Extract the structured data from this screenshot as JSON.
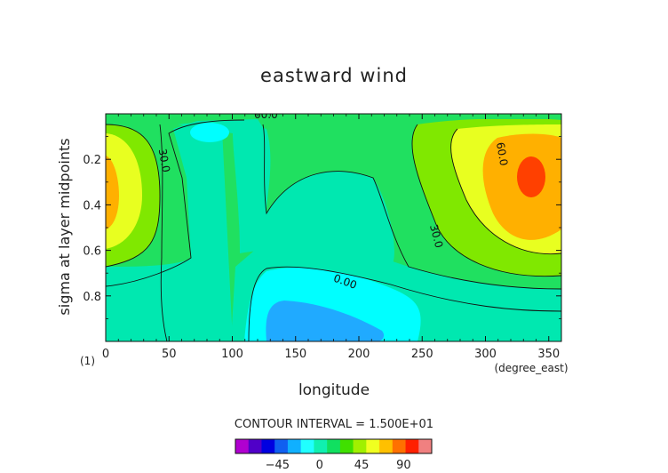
{
  "chart_data": {
    "type": "heatmap",
    "title": "eastward wind",
    "xlabel": "longitude",
    "ylabel": "sigma at layer midpoints",
    "x_unit": "(degree_east)",
    "panel_label": "(1)",
    "xlim": [
      0,
      360
    ],
    "ylim": [
      0.0,
      1.0
    ],
    "y_inverted": true,
    "x_ticks": [
      "0",
      "50",
      "100",
      "150",
      "200",
      "250",
      "300",
      "350"
    ],
    "y_ticks": [
      "0.2",
      "0.4",
      "0.6",
      "0.8"
    ],
    "contour_interval_text": "CONTOUR INTERVAL = 1.500E+01",
    "contour_labels": [
      "30.0",
      "60.0",
      "60.0",
      "30.0",
      "0.00"
    ],
    "colorbar": {
      "levels": [
        -75,
        -60,
        -45,
        -30,
        -15,
        0,
        15,
        30,
        45,
        60,
        75,
        90,
        105
      ],
      "colors": [
        "#b000d0",
        "#5000c8",
        "#0000e0",
        "#1060f0",
        "#10b0ff",
        "#20ffff",
        "#10f0b0",
        "#10e060",
        "#40e000",
        "#a0f000",
        "#f0ff20",
        "#ffc000",
        "#ff7000",
        "#ff2000",
        "#f08080"
      ],
      "tick_labels": [
        "-45",
        "0",
        "45",
        "90"
      ]
    },
    "colors": {
      "cyan": "#00ffff",
      "light_blue": "#20aaff",
      "blue_green": "#00e8b0",
      "green": "#20e060",
      "lime": "#80e800",
      "yellow": "#e8ff20",
      "orange": "#ffb000",
      "red": "#ff4000"
    }
  }
}
